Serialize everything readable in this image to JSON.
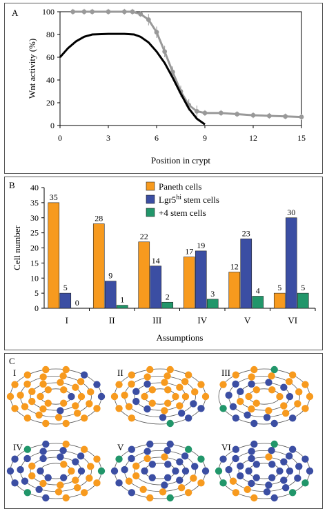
{
  "panel_a": {
    "letter": "A",
    "chart_data": {
      "type": "line",
      "xlabel": "Position in crypt",
      "ylabel": "Wnt activity (%)",
      "xlim": [
        0,
        15
      ],
      "ylim": [
        0,
        100
      ],
      "xticks": [
        "0",
        "3",
        "6",
        "9",
        "12",
        "15"
      ],
      "yticks": [
        "0",
        "20",
        "40",
        "60",
        "80",
        "100"
      ],
      "series": [
        {
          "color": "#000000",
          "style": "solid thick line",
          "points": [
            [
              0,
              60
            ],
            [
              0.5,
              68
            ],
            [
              1,
              74
            ],
            [
              1.5,
              78
            ],
            [
              2,
              80
            ],
            [
              3,
              80.5
            ],
            [
              4,
              80.5
            ],
            [
              4.6,
              80
            ],
            [
              5,
              78
            ],
            [
              5.5,
              73
            ],
            [
              6,
              65
            ],
            [
              6.5,
              55
            ],
            [
              7,
              42
            ],
            [
              7.5,
              28
            ],
            [
              8,
              15
            ],
            [
              8.5,
              6
            ],
            [
              9,
              1
            ]
          ]
        },
        {
          "color": "#999999",
          "style": "grey markers with error bars",
          "points": [
            [
              0.8,
              100
            ],
            [
              1.5,
              100
            ],
            [
              2,
              100
            ],
            [
              3,
              100
            ],
            [
              4,
              100
            ],
            [
              4.5,
              100
            ],
            [
              5,
              98
            ],
            [
              5.5,
              93
            ],
            [
              6,
              82
            ],
            [
              6.5,
              65
            ],
            [
              7,
              47
            ],
            [
              7.5,
              30
            ],
            [
              8,
              18
            ],
            [
              8.5,
              12.5
            ],
            [
              9,
              11
            ],
            [
              10,
              11
            ],
            [
              11,
              10
            ],
            [
              12,
              9
            ],
            [
              13,
              8.5
            ],
            [
              14,
              8
            ],
            [
              15,
              7.5
            ]
          ]
        }
      ]
    }
  },
  "panel_b": {
    "letter": "B",
    "chart_data": {
      "type": "bar",
      "xlabel": "Assumptions",
      "ylabel": "Cell number",
      "ylim": [
        0,
        40
      ],
      "yticks": [
        "0",
        "5",
        "10",
        "15",
        "20",
        "25",
        "30",
        "35",
        "40"
      ],
      "categories": [
        "I",
        "II",
        "III",
        "IV",
        "V",
        "VI"
      ],
      "series": [
        {
          "name": "Paneth cells",
          "color": "#f79a1e",
          "values": [
            35,
            28,
            22,
            17,
            12,
            5
          ],
          "labels": [
            "35",
            "28",
            "22",
            "17",
            "12",
            "5"
          ]
        },
        {
          "name": "Lgr5hi stem cells",
          "color": "#3b4ea3",
          "values": [
            5,
            9,
            14,
            19,
            23,
            30
          ],
          "labels": [
            "5",
            "9",
            "14",
            "19",
            "23",
            "30"
          ]
        },
        {
          "name": "+4 stem cells",
          "color": "#21966a",
          "values": [
            0,
            1,
            2,
            3,
            4,
            5
          ],
          "labels": [
            "0",
            "1",
            "2",
            "3",
            "4",
            "5"
          ]
        }
      ],
      "legend": {
        "placement": "top-center",
        "items": [
          {
            "text": "Paneth cells"
          },
          {
            "text": "Lgr5",
            "sup": "hi",
            "rest": " stem cells"
          },
          {
            "text": "+4 stem cells"
          }
        ]
      }
    }
  },
  "panel_c": {
    "letter": "C",
    "colors": {
      "paneth": "#f79a1e",
      "lgr5": "#3b4ea3",
      "plus4": "#21966a",
      "ring": "#555555"
    },
    "diagrams": [
      {
        "label": "I",
        "counts": {
          "paneth": 35,
          "lgr5": 5,
          "plus4": 0
        }
      },
      {
        "label": "II",
        "counts": {
          "paneth": 28,
          "lgr5": 9,
          "plus4": 1
        }
      },
      {
        "label": "III",
        "counts": {
          "paneth": 22,
          "lgr5": 14,
          "plus4": 2
        }
      },
      {
        "label": "IV",
        "counts": {
          "paneth": 17,
          "lgr5": 19,
          "plus4": 3
        }
      },
      {
        "label": "V",
        "counts": {
          "paneth": 12,
          "lgr5": 23,
          "plus4": 4
        }
      },
      {
        "label": "VI",
        "counts": {
          "paneth": 5,
          "lgr5": 30,
          "plus4": 5
        }
      }
    ]
  }
}
